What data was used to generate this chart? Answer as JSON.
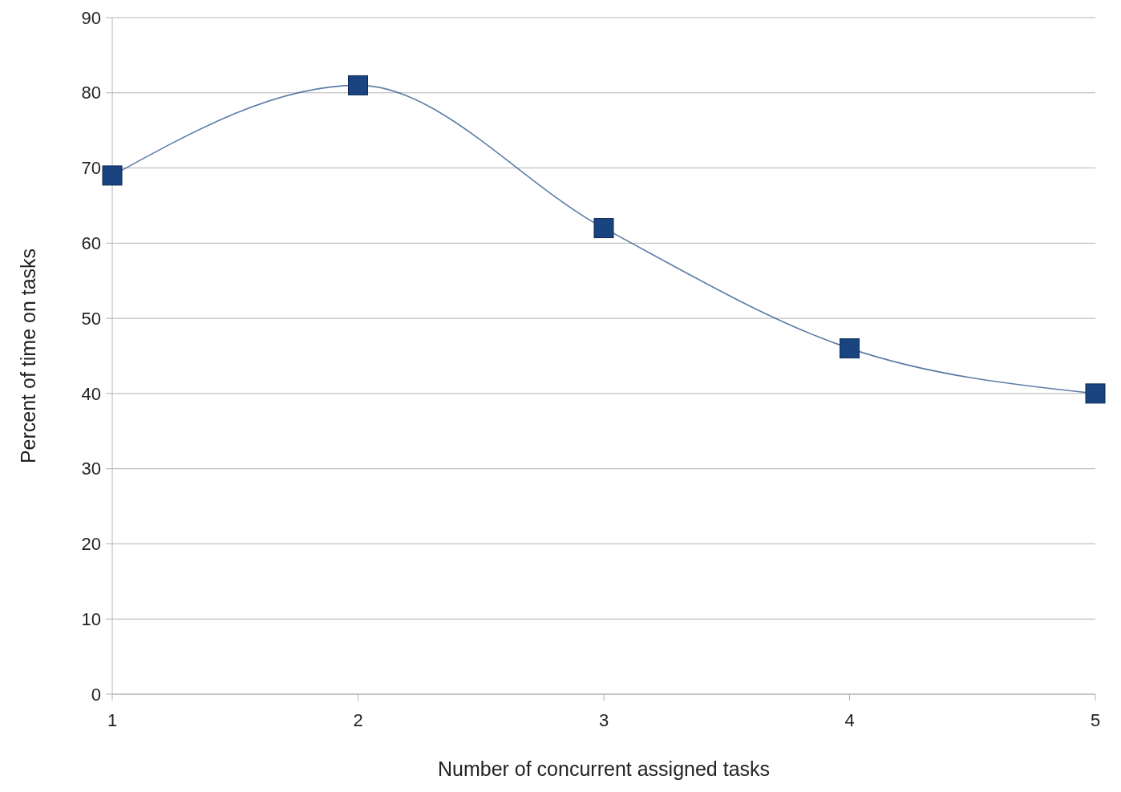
{
  "chart_data": {
    "type": "line",
    "xlabel": "Number of concurrent assigned tasks",
    "ylabel": "Percent of time on tasks",
    "x": [
      1,
      2,
      3,
      4,
      5
    ],
    "series": [
      {
        "color": "#1a4480",
        "values": [
          69,
          81,
          62,
          46,
          40
        ]
      }
    ],
    "xlim": [
      1,
      5
    ],
    "xticks": [
      1,
      2,
      3,
      4,
      5
    ],
    "ylim": [
      0,
      90
    ],
    "yticks": [
      0,
      10,
      20,
      30,
      40,
      50,
      60,
      70,
      80,
      90
    ],
    "grid": "y",
    "marker": "square",
    "line_style": "solid"
  }
}
